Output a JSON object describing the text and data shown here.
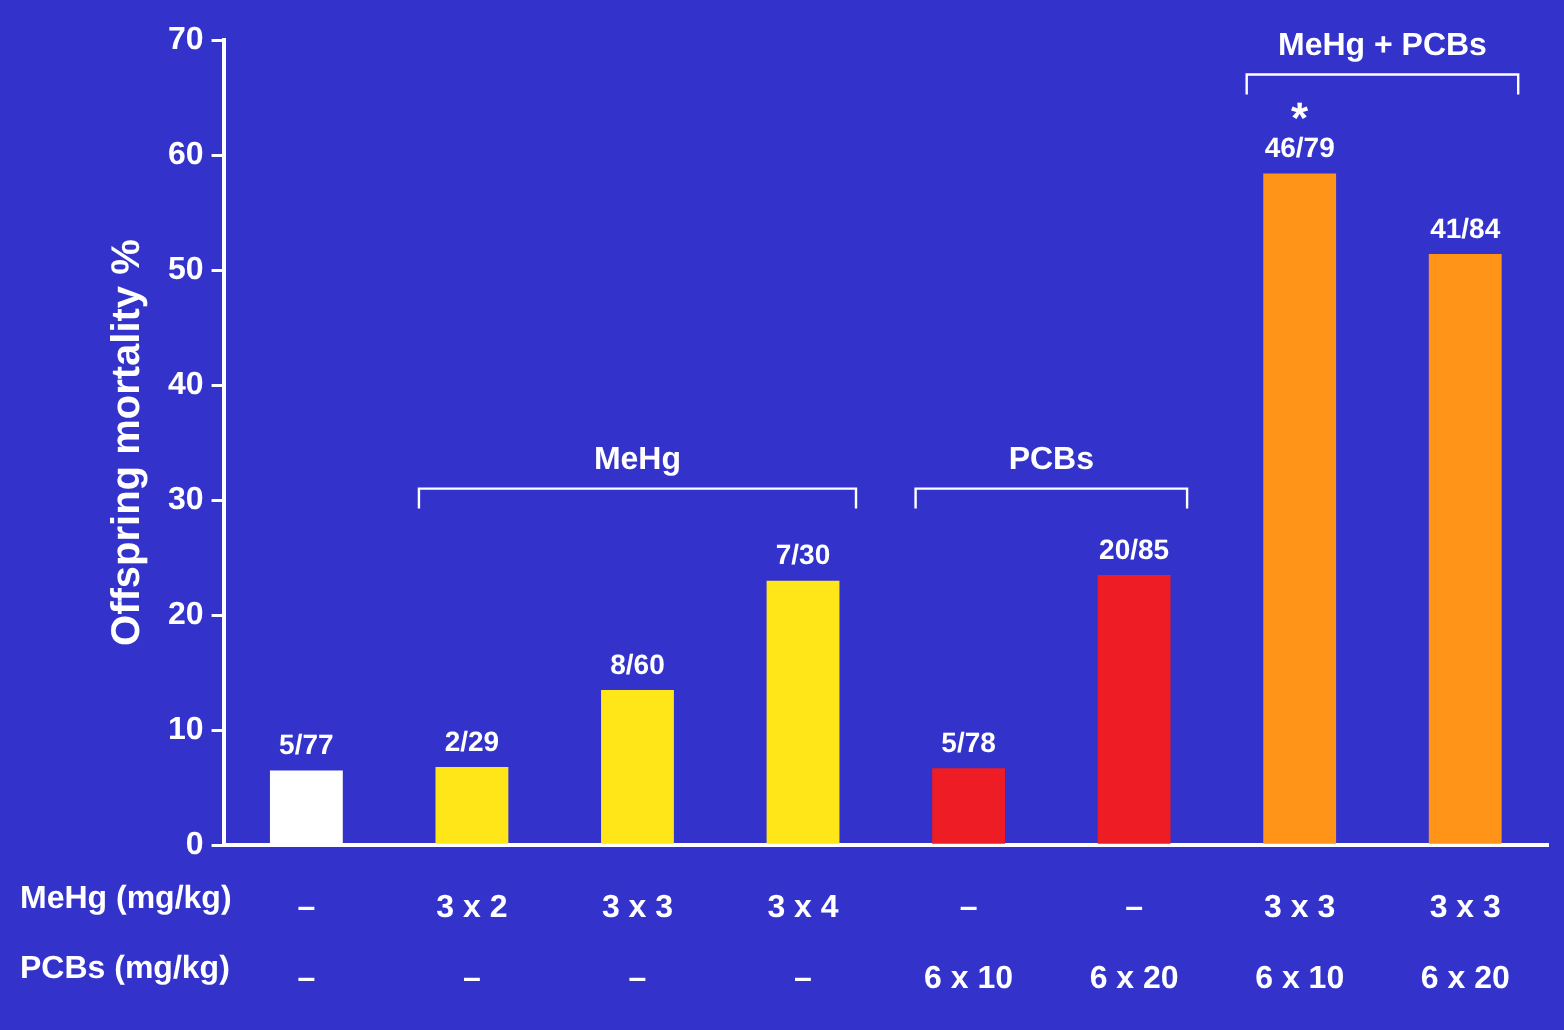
{
  "chart_data": {
    "type": "bar",
    "ylabel": "Offspring mortality %",
    "categories": [
      "–\n–",
      "3 x 2\n–",
      "3 x 3\n–",
      "3 x 4\n–",
      "–\n6 x 10",
      "–\n6 x 20",
      "3 x 3\n6 x 10",
      "3 x 3\n6 x 20"
    ],
    "values": [
      6.5,
      6.8,
      13.5,
      23.0,
      6.7,
      23.5,
      58.4,
      51.4
    ],
    "colors": [
      "#ffffff",
      "#ffe619",
      "#ffe619",
      "#ffe619",
      "#ee1c24",
      "#ee1c24",
      "#ff9419",
      "#ff9419"
    ],
    "value_labels": [
      "5/77",
      "2/29",
      "8/60",
      "7/30",
      "5/78",
      "20/85",
      "46/79",
      "41/84"
    ],
    "ylim": [
      0,
      70
    ],
    "yticks": [
      0,
      10,
      20,
      30,
      40,
      50,
      60,
      70
    ],
    "grid": false,
    "legend": false,
    "annotations": [
      "MeHg",
      "PCBs",
      "MeHg + PCBs",
      "*",
      "MeHg (mg/kg)",
      "PCBs (mg/kg)"
    ]
  }
}
